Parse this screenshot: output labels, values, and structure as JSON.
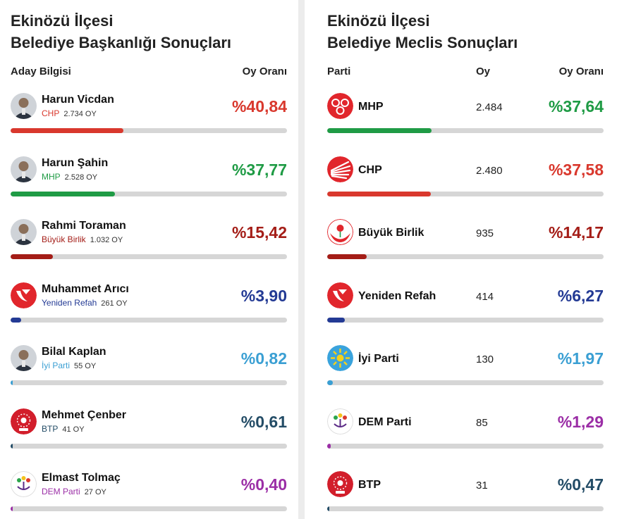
{
  "mayor": {
    "title_line1": "Ekinözü İlçesi",
    "title_line2": "Belediye Başkanlığı Sonuçları",
    "col_candidate": "Aday Bilgisi",
    "col_share": "Oy Oranı",
    "rows": [
      {
        "name": "Harun Vicdan",
        "party": "CHP",
        "votes": "2.734 OY",
        "pct_label": "%40,84",
        "pct": 40.84,
        "color": "#d9382d",
        "party_color": "#d9382d",
        "logo": "photo"
      },
      {
        "name": "Harun Şahin",
        "party": "MHP",
        "votes": "2.528 OY",
        "pct_label": "%37,77",
        "pct": 37.77,
        "color": "#1f9b45",
        "party_color": "#1f9b45",
        "logo": "photo"
      },
      {
        "name": "Rahmi Toraman",
        "party": "Büyük Birlik",
        "votes": "1.032 OY",
        "pct_label": "%15,42",
        "pct": 15.42,
        "color": "#a41d17",
        "party_color": "#a41d17",
        "logo": "photo"
      },
      {
        "name": "Muhammet Arıcı",
        "party": "Yeniden Refah",
        "votes": "261 OY",
        "pct_label": "%3,90",
        "pct": 3.9,
        "color": "#233a94",
        "party_color": "#233a94",
        "logo": "yrp"
      },
      {
        "name": "Bilal Kaplan",
        "party": "İyi Parti",
        "votes": "55 OY",
        "pct_label": "%0,82",
        "pct": 0.82,
        "color": "#3a9fd3",
        "party_color": "#3a9fd3",
        "logo": "photo"
      },
      {
        "name": "Mehmet Çenber",
        "party": "BTP",
        "votes": "41 OY",
        "pct_label": "%0,61",
        "pct": 0.61,
        "color": "#234c66",
        "party_color": "#234c66",
        "logo": "btp"
      },
      {
        "name": "Elmast Tolmaç",
        "party": "DEM Parti",
        "votes": "27 OY",
        "pct_label": "%0,40",
        "pct": 0.4,
        "color": "#9b2ea6",
        "party_color": "#9b2ea6",
        "logo": "dem"
      }
    ]
  },
  "council": {
    "title_line1": "Ekinözü İlçesi",
    "title_line2": "Belediye Meclis Sonuçları",
    "col_party": "Parti",
    "col_votes": "Oy",
    "col_share": "Oy Oranı",
    "rows": [
      {
        "party": "MHP",
        "votes": "2.484",
        "pct_label": "%37,64",
        "pct": 37.64,
        "color": "#1f9b45",
        "logo": "mhp"
      },
      {
        "party": "CHP",
        "votes": "2.480",
        "pct_label": "%37,58",
        "pct": 37.58,
        "color": "#d9382d",
        "logo": "chp"
      },
      {
        "party": "Büyük Birlik",
        "votes": "935",
        "pct_label": "%14,17",
        "pct": 14.17,
        "color": "#a41d17",
        "logo": "bbp"
      },
      {
        "party": "Yeniden Refah",
        "votes": "414",
        "pct_label": "%6,27",
        "pct": 6.27,
        "color": "#233a94",
        "logo": "yrp"
      },
      {
        "party": "İyi Parti",
        "votes": "130",
        "pct_label": "%1,97",
        "pct": 1.97,
        "color": "#3a9fd3",
        "logo": "iyi"
      },
      {
        "party": "DEM Parti",
        "votes": "85",
        "pct_label": "%1,29",
        "pct": 1.29,
        "color": "#9b2ea6",
        "logo": "dem"
      },
      {
        "party": "BTP",
        "votes": "31",
        "pct_label": "%0,47",
        "pct": 0.47,
        "color": "#234c66",
        "logo": "btp"
      }
    ]
  }
}
